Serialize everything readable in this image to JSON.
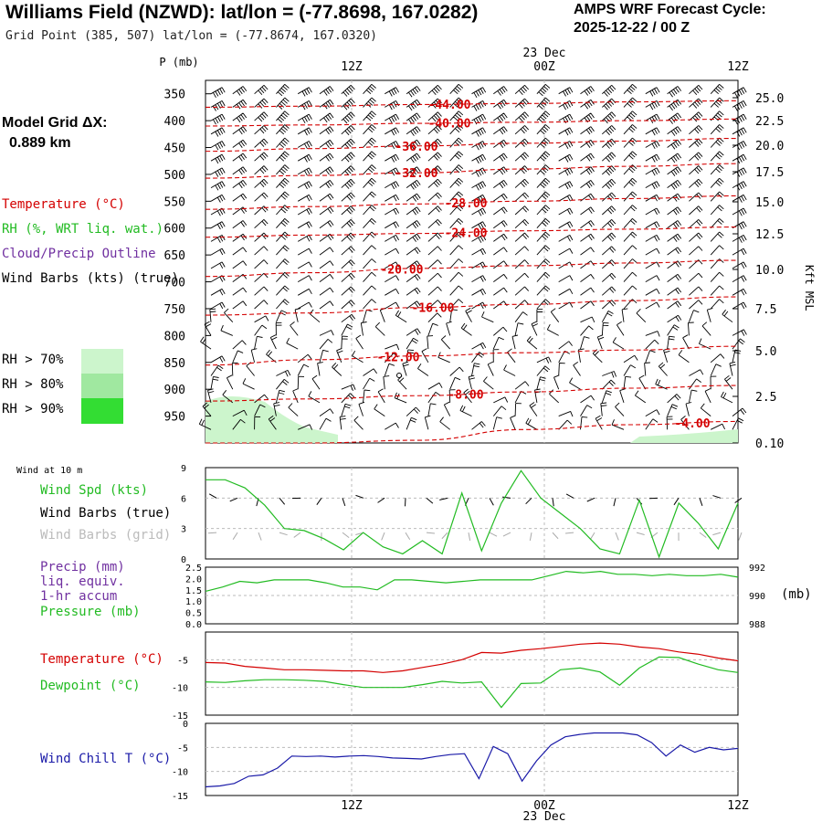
{
  "header": {
    "title": "Williams Field (NZWD):  lat/lon = (-77.8698, 167.0282)",
    "subtitle": "Grid Point (385, 507) lat/lon = (-77.8674, 167.0320)",
    "cycle_line1": "AMPS WRF Forecast Cycle:",
    "cycle_line2": "2025-12-22 / 00  Z",
    "grid_label": "Model Grid ΔX:",
    "grid_value": "0.889 km",
    "date_label": "23 Dec"
  },
  "legend_upper": {
    "temperature": "Temperature (°C)",
    "rh": "RH (%, WRT liq. wat.)",
    "cloud": "Cloud/Precip Outline",
    "wind": "Wind Barbs (kts) (true)",
    "rh70": "RH > 70%",
    "rh80": "RH > 80%",
    "rh90": "RH > 90%"
  },
  "legend_wind": {
    "header": "Wind at 10 m",
    "spd": "Wind Spd (kts)",
    "barbs_true": "Wind Barbs (true)",
    "barbs_grid": "Wind Barbs (grid)"
  },
  "legend_precip": {
    "l1": "Precip (mm)",
    "l2": "liq. equiv.",
    "l3": "1-hr accum",
    "l4": "Pressure (mb)",
    "unit": "(mb)"
  },
  "legend_temp": {
    "t": "Temperature (°C)",
    "td": "Dewpoint (°C)"
  },
  "legend_chill": {
    "wc": "Wind Chill T (°C)"
  },
  "colors": {
    "temp": "#d40000",
    "green": "#22bb22",
    "purple": "#7030a0",
    "blue": "#1a1aa8",
    "grey": "#aaaaaa",
    "rh70": "#ccf5cc",
    "rh80": "#a0e8a0",
    "rh90": "#33dd33"
  },
  "chart_data": [
    {
      "type": "line",
      "name": "cross-section",
      "ylabel": "P (mb)",
      "y2label": "Kft MSL",
      "x_ticks": [
        "12Z",
        "00Z",
        "12Z"
      ],
      "pressure_levels": [
        350,
        400,
        450,
        500,
        550,
        600,
        650,
        700,
        750,
        800,
        850,
        900,
        950
      ],
      "kft_ticks": [
        "25.0",
        "22.5",
        "20.0",
        "17.5",
        "15.0",
        "12.5",
        "10.0",
        "7.5",
        "5.0",
        "2.5",
        "0.10"
      ],
      "isotherms": [
        {
          "label": "-44.00",
          "p": [
            375,
            373,
            370,
            368,
            365,
            363
          ]
        },
        {
          "label": "-40.00",
          "p": [
            410,
            408,
            405,
            403,
            400,
            397
          ]
        },
        {
          "label": "-36.00",
          "p": [
            457,
            452,
            447,
            442,
            438,
            433
          ]
        },
        {
          "label": "-32.00",
          "p": [
            507,
            502,
            497,
            490,
            485,
            480
          ]
        },
        {
          "label": "-28.00",
          "p": [
            565,
            560,
            555,
            550,
            545,
            540
          ]
        },
        {
          "label": "-24.00",
          "p": [
            617,
            613,
            610,
            605,
            602,
            598
          ]
        },
        {
          "label": "-20.00",
          "p": [
            690,
            683,
            675,
            670,
            665,
            660
          ]
        },
        {
          "label": "-16.00",
          "p": [
            762,
            758,
            748,
            742,
            735,
            728
          ]
        },
        {
          "label": "-12.00",
          "p": [
            855,
            845,
            838,
            832,
            827,
            820
          ]
        },
        {
          "label": "-8.00",
          "p": [
            922,
            918,
            912,
            905,
            898,
            893
          ]
        },
        {
          "label": "-4.00",
          "p": [
            1000,
            1000,
            995,
            975,
            966,
            960
          ]
        }
      ]
    },
    {
      "type": "line",
      "name": "wind-10m",
      "ylim": [
        0,
        9
      ],
      "y_ticks": [
        "0",
        "3",
        "6",
        "9"
      ],
      "wind_speed_kts": [
        7.8,
        7.8,
        7.0,
        5.3,
        3.0,
        2.8,
        2.0,
        0.9,
        2.6,
        1.2,
        0.5,
        1.8,
        0.5,
        6.5,
        0.8,
        5.5,
        8.7,
        6.0,
        4.5,
        3.0,
        1.0,
        0.5,
        5.8,
        0.2,
        5.5,
        3.5,
        1.0,
        5.5
      ]
    },
    {
      "type": "line",
      "name": "precip-pressure",
      "precip_ticks": [
        "0.0",
        "0.5",
        "1.0",
        "1.5",
        "2.0",
        "2.5"
      ],
      "pressure_ticks": [
        "988",
        "990",
        "992"
      ],
      "pressure_mb": [
        990.3,
        990.6,
        991.0,
        990.9,
        991.1,
        991.1,
        991.1,
        990.9,
        990.6,
        990.6,
        990.4,
        991.1,
        991.1,
        991.0,
        990.9,
        991.0,
        991.1,
        991.1,
        991.1,
        991.1,
        991.4,
        991.7,
        991.6,
        991.7,
        991.5,
        991.5,
        991.4,
        991.5,
        991.4,
        991.4,
        991.5,
        991.3
      ]
    },
    {
      "type": "line",
      "name": "temperature-dewpoint",
      "ylim": [
        -15,
        0
      ],
      "y_ticks": [
        "-5",
        "-10",
        "-15"
      ],
      "temperature": [
        -5.5,
        -5.6,
        -6.2,
        -6.5,
        -6.8,
        -6.8,
        -6.9,
        -7.0,
        -7.0,
        -7.3,
        -7.0,
        -6.4,
        -5.8,
        -5.0,
        -3.7,
        -3.8,
        -3.3,
        -3.0,
        -2.6,
        -2.2,
        -2.0,
        -2.2,
        -2.7,
        -3.0,
        -3.6,
        -4.0,
        -4.7,
        -5.2
      ],
      "dewpoint": [
        -9.0,
        -9.1,
        -8.8,
        -8.6,
        -8.6,
        -8.7,
        -8.9,
        -9.5,
        -10.0,
        -10.0,
        -10.0,
        -9.5,
        -8.9,
        -9.2,
        -9.0,
        -13.6,
        -9.3,
        -9.2,
        -6.8,
        -6.5,
        -7.2,
        -9.6,
        -6.5,
        -4.5,
        -4.6,
        -5.8,
        -6.8,
        -7.3
      ]
    },
    {
      "type": "line",
      "name": "wind-chill",
      "ylim": [
        -15,
        0
      ],
      "y_ticks": [
        "0",
        "-5",
        "-10",
        "-15"
      ],
      "wind_chill": [
        -13.2,
        -13.0,
        -12.5,
        -11.0,
        -10.7,
        -9.3,
        -6.8,
        -6.9,
        -6.8,
        -7.0,
        -6.8,
        -6.7,
        -6.9,
        -7.2,
        -7.3,
        -7.4,
        -6.9,
        -6.5,
        -6.3,
        -11.5,
        -4.8,
        -6.3,
        -12.0,
        -7.8,
        -4.5,
        -2.8,
        -2.3,
        -2.0,
        -2.0,
        -2.0,
        -2.4,
        -4.0,
        -6.8,
        -4.5,
        -6.0,
        -5.0,
        -5.5,
        -5.2
      ]
    }
  ]
}
